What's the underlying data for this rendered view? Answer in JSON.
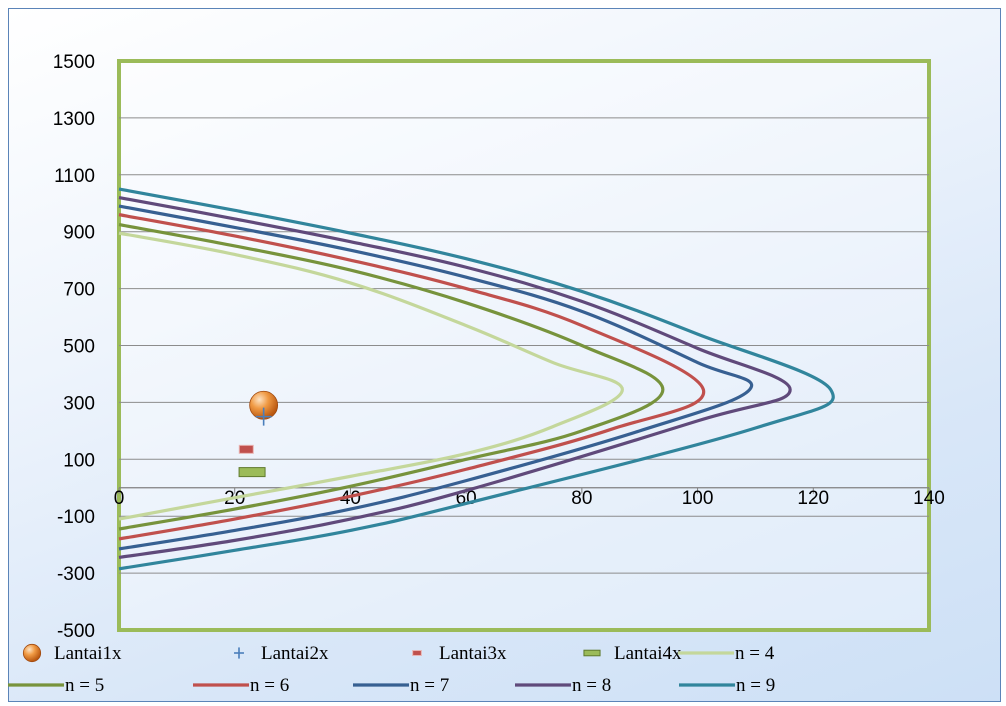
{
  "chart_data": {
    "type": "scatter",
    "title": "",
    "xlabel": "",
    "ylabel": "",
    "xlim": [
      0,
      140
    ],
    "ylim": [
      -500,
      1500
    ],
    "x_ticks": [
      0,
      20,
      40,
      60,
      80,
      100,
      120,
      140
    ],
    "y_ticks": [
      -500,
      -300,
      -100,
      100,
      300,
      500,
      700,
      900,
      1100,
      1300,
      1500
    ],
    "grid": "horizontal",
    "legend_position": "bottom",
    "points": [
      {
        "name": "Lantai1x",
        "marker": "sphere",
        "color": "#e07a1f",
        "x": 25,
        "y": 290
      },
      {
        "name": "Lantai2x",
        "marker": "plus",
        "color": "#4a7ebb",
        "x": 25,
        "y": 250
      },
      {
        "name": "Lantai3x",
        "marker": "dash",
        "color": "#c0504d",
        "x": 22,
        "y": 135
      },
      {
        "name": "Lantai4x",
        "marker": "bar",
        "color": "#9bbb59",
        "x": 23,
        "y": 55
      }
    ],
    "series": [
      {
        "name": "n = 4",
        "color": "#c4d79b",
        "x": [
          0,
          20,
          40,
          60,
          75,
          87,
          75,
          60,
          40,
          20,
          0
        ],
        "y": [
          895,
          820,
          720,
          570,
          440,
          345,
          215,
          120,
          40,
          -35,
          -110
        ]
      },
      {
        "name": "n = 5",
        "color": "#77933c",
        "x": [
          0,
          20,
          40,
          60,
          80,
          94,
          80,
          60,
          40,
          20,
          0
        ],
        "y": [
          925,
          850,
          765,
          650,
          500,
          345,
          200,
          100,
          5,
          -75,
          -145
        ]
      },
      {
        "name": "n = 6",
        "color": "#c0504d",
        "x": [
          0,
          20,
          40,
          60,
          80,
          101,
          85,
          60,
          40,
          20,
          0
        ],
        "y": [
          960,
          885,
          800,
          700,
          570,
          345,
          205,
          65,
          -30,
          -110,
          -180
        ]
      },
      {
        "name": "n = 7",
        "color": "#376092",
        "x": [
          0,
          20,
          40,
          60,
          80,
          100,
          109,
          90,
          60,
          40,
          20,
          0
        ],
        "y": [
          990,
          915,
          835,
          740,
          620,
          440,
          345,
          200,
          25,
          -75,
          -150,
          -215
        ]
      },
      {
        "name": "n = 8",
        "color": "#604a7b",
        "x": [
          0,
          20,
          40,
          60,
          80,
          100,
          116,
          100,
          60,
          40,
          20,
          0
        ],
        "y": [
          1020,
          945,
          865,
          775,
          655,
          490,
          345,
          235,
          -10,
          -110,
          -185,
          -245
        ]
      },
      {
        "name": "n = 9",
        "color": "#31859c",
        "x": [
          0,
          20,
          40,
          60,
          80,
          100,
          123,
          110,
          60,
          40,
          20,
          0
        ],
        "y": [
          1050,
          975,
          895,
          805,
          690,
          540,
          345,
          210,
          -55,
          -150,
          -220,
          -285
        ]
      }
    ]
  }
}
